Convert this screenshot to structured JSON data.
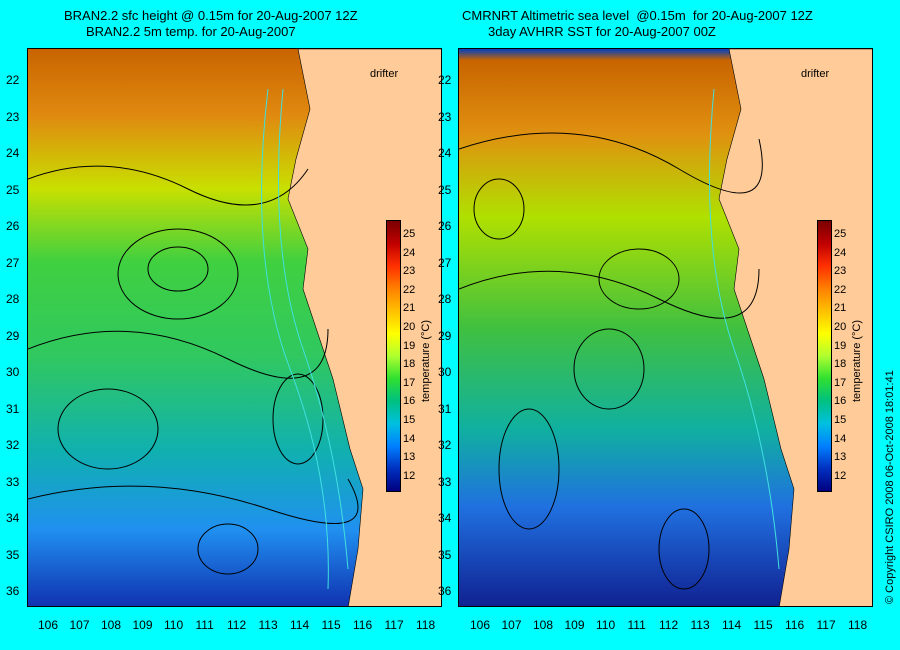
{
  "left_panel": {
    "title_line1": "BRAN2.2 sfc height @ 0.15m for 20-Aug-2007 12Z",
    "title_line2": "BRAN2.2 5m temp. for 20-Aug-2007",
    "drifter_label": "drifter",
    "colorbar_label": "temperature (°C)"
  },
  "right_panel": {
    "title_line1": "CMRNRT Altimetric sea level  @0.15m  for 20-Aug-2007 12Z",
    "title_line2": "3day AVHRR SST for 20-Aug-2007 00Z",
    "drifter_label": "drifter",
    "colorbar_label": "temperature (°C)"
  },
  "lat_labels": [
    "22",
    "23",
    "24",
    "25",
    "26",
    "27",
    "28",
    "29",
    "30",
    "31",
    "32",
    "33",
    "34",
    "35",
    "36"
  ],
  "lon_labels": [
    "106",
    "107",
    "108",
    "109",
    "110",
    "111",
    "112",
    "113",
    "114",
    "115",
    "116",
    "117",
    "118"
  ],
  "colorbar_ticks": [
    "25",
    "24",
    "23",
    "22",
    "21",
    "20",
    "19",
    "18",
    "17",
    "16",
    "15",
    "14",
    "13",
    "12"
  ],
  "copyright": "© Copyright CSIRO 2008   06-Oct-2008 18:01:41",
  "colors": {
    "background": "#00ffff",
    "land": "#ffcc99",
    "contour": "#000000",
    "isobath": "#40e0e0",
    "drifter": "#ff33cc"
  }
}
